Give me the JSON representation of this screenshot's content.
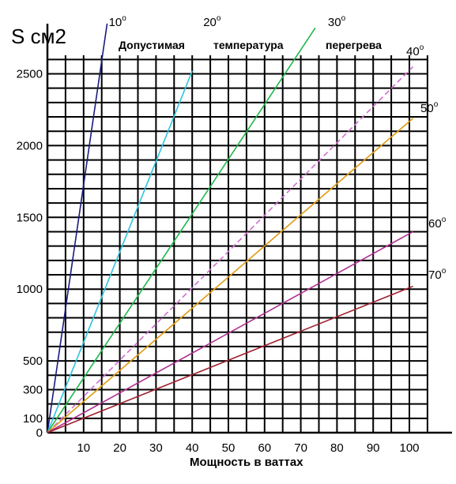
{
  "chart_data": {
    "type": "line",
    "ylabel": "S см2",
    "xlabel": "Мощность в ваттах",
    "title_words": [
      "Допустимая",
      "температура",
      "перегрева"
    ],
    "x_ticks": [
      "10",
      "20",
      "30",
      "40",
      "50",
      "60",
      "70",
      "80",
      "90",
      "100"
    ],
    "y_ticks": [
      "0",
      "100",
      "300",
      "500",
      "1000",
      "1500",
      "2000",
      "2500"
    ],
    "xlim": [
      0,
      110
    ],
    "ylim": [
      0,
      2800
    ],
    "grid": true,
    "series": [
      {
        "name": "10",
        "color": "#1a1a80",
        "dash": false,
        "x": [
          0,
          16.5
        ],
        "y": [
          0,
          2850
        ]
      },
      {
        "name": "20",
        "color": "#2ec4e0",
        "dash": false,
        "x": [
          0,
          40
        ],
        "y": [
          0,
          2520
        ]
      },
      {
        "name": "30",
        "color": "#1fb84a",
        "dash": false,
        "x": [
          0,
          74
        ],
        "y": [
          0,
          2820
        ]
      },
      {
        "name": "40",
        "color": "#d070d0",
        "dash": true,
        "x": [
          0,
          101
        ],
        "y": [
          0,
          2550
        ]
      },
      {
        "name": "50",
        "color": "#e09a10",
        "dash": false,
        "x": [
          0,
          101
        ],
        "y": [
          0,
          2190
        ]
      },
      {
        "name": "60",
        "color": "#b03090",
        "dash": false,
        "x": [
          0,
          101
        ],
        "y": [
          0,
          1400
        ]
      },
      {
        "name": "70",
        "color": "#a02030",
        "dash": false,
        "x": [
          0,
          101
        ],
        "y": [
          0,
          1020
        ]
      }
    ],
    "series_label_suffix": "o"
  }
}
